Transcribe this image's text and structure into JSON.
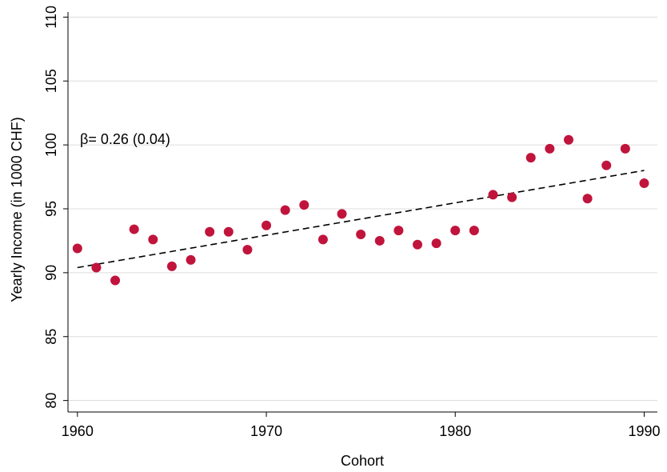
{
  "chart_data": {
    "type": "scatter",
    "x_label": "Cohort",
    "y_label": "Yearly Income (in 1000 CHF)",
    "annotation": "β=  0.26 (0.04)",
    "x": [
      1960,
      1961,
      1962,
      1963,
      1964,
      1965,
      1966,
      1967,
      1968,
      1969,
      1970,
      1971,
      1972,
      1973,
      1974,
      1975,
      1976,
      1977,
      1978,
      1979,
      1980,
      1981,
      1982,
      1983,
      1984,
      1985,
      1986,
      1987,
      1988,
      1989,
      1990
    ],
    "values": [
      91.9,
      90.4,
      89.4,
      93.4,
      92.6,
      90.5,
      91.0,
      93.2,
      93.2,
      91.8,
      93.7,
      94.9,
      95.3,
      92.6,
      94.6,
      93.0,
      92.5,
      93.3,
      92.2,
      92.3,
      93.3,
      93.3,
      96.1,
      95.9,
      99.0,
      99.7,
      100.4,
      95.8,
      98.4,
      99.7,
      97.0
    ],
    "color": "#c0143c",
    "fit_line": {
      "x": [
        1960,
        1990
      ],
      "values": [
        90.4,
        98.0
      ]
    },
    "xlim": [
      1959.5,
      1990.7
    ],
    "xticks": [
      1960,
      1970,
      1980,
      1990
    ],
    "ylim": [
      79.1,
      110.4
    ],
    "yticks": [
      80,
      85,
      90,
      95,
      100,
      105,
      110
    ],
    "grid": true
  }
}
